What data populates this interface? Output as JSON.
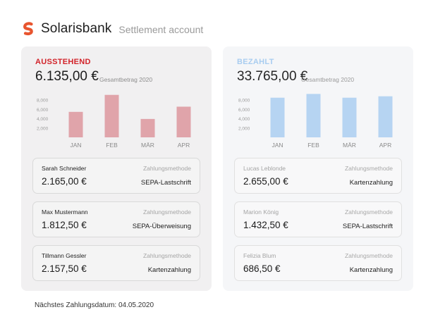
{
  "header": {
    "brand": "Solarisbank",
    "subtitle": "Settlement account",
    "logo_icon": "solarisbank-logo-icon",
    "brand_color": "#e8552f"
  },
  "left_panel": {
    "status": "AUSSTEHEND",
    "status_color": "#d2232a",
    "amount": "6.135,00 €",
    "amount_label": "Gesamtbetrag 2020",
    "bar_color": "#e0a4aa",
    "cards": [
      {
        "name": "Sarah Schneider",
        "method_label": "Zahlungsmethode",
        "value": "2.165,00 €",
        "method": "SEPA-Lastschrift"
      },
      {
        "name": "Max Mustermann",
        "method_label": "Zahlungsmethode",
        "value": "1.812,50 €",
        "method": "SEPA-Überweisung"
      },
      {
        "name": "Tillmann Gessler",
        "method_label": "Zahlungsmethode",
        "value": "2.157,50 €",
        "method": "Kartenzahlung"
      }
    ]
  },
  "right_panel": {
    "status": "BEZAHLT",
    "status_color": "#a9cdf0",
    "amount": "33.765,00 €",
    "amount_label": "Gesamtbetrag 2020",
    "bar_color": "#b6d4f2",
    "cards": [
      {
        "name": "Lucas Leblonde",
        "method_label": "Zahlungsmethode",
        "value": "2.655,00 €",
        "method": "Kartenzahlung"
      },
      {
        "name": "Marion König",
        "method_label": "Zahlungsmethode",
        "value": "1.432,50 €",
        "method": "SEPA-Lastschrift"
      },
      {
        "name": "Felizia Blum",
        "method_label": "Zahlungsmethode",
        "value": "686,50 €",
        "method": "Kartenzahlung"
      }
    ]
  },
  "footer": {
    "next_payment": "Nächstes Zahlungsdatum: 04.05.2020"
  },
  "chart_data": [
    {
      "type": "bar",
      "categories": [
        "JAN",
        "FEB",
        "MÄR",
        "APR"
      ],
      "values": [
        5400,
        9000,
        3900,
        6500
      ],
      "yticks": [
        "8,000",
        "6,000",
        "4,000",
        "2,000"
      ],
      "ytick_values": [
        8000,
        6000,
        4000,
        2000
      ],
      "ylim": [
        0,
        10000
      ],
      "grid": false
    },
    {
      "type": "bar",
      "categories": [
        "JAN",
        "FEB",
        "MÄR",
        "APR"
      ],
      "values": [
        8400,
        9200,
        8400,
        8700
      ],
      "yticks": [
        "8,000",
        "6,000",
        "4,000",
        "2,000"
      ],
      "ytick_values": [
        8000,
        6000,
        4000,
        2000
      ],
      "ylim": [
        0,
        10000
      ],
      "grid": false
    }
  ]
}
